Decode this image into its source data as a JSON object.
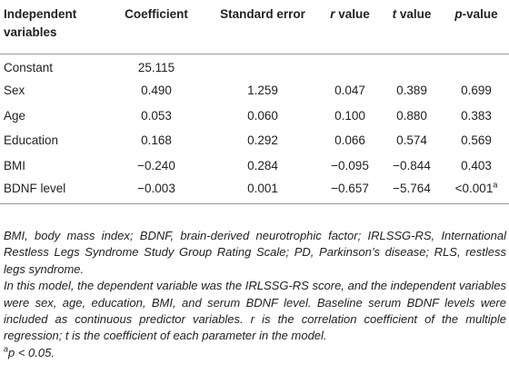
{
  "table": {
    "headers": {
      "variables": "Independent variables",
      "coefficient": "Coefficient",
      "std_error": "Standard error",
      "r_value_italic": "r",
      "r_value_rest": " value",
      "t_value_italic": "t",
      "t_value_rest": " value",
      "p_value_italic": "p",
      "p_value_rest": "-value"
    },
    "rows": [
      {
        "variable": "Constant",
        "coefficient": "25.115",
        "std_error": "",
        "r_value": "",
        "t_value": "",
        "p_value": "",
        "p_sup": ""
      },
      {
        "variable": "Sex",
        "coefficient": "0.490",
        "std_error": "1.259",
        "r_value": "0.047",
        "t_value": "0.389",
        "p_value": "0.699",
        "p_sup": ""
      },
      {
        "variable": "Age",
        "coefficient": "0.053",
        "std_error": "0.060",
        "r_value": "0.100",
        "t_value": "0.880",
        "p_value": "0.383",
        "p_sup": ""
      },
      {
        "variable": "Education",
        "coefficient": "0.168",
        "std_error": "0.292",
        "r_value": "0.066",
        "t_value": "0.574",
        "p_value": "0.569",
        "p_sup": ""
      },
      {
        "variable": "BMI",
        "coefficient": "−0.240",
        "std_error": "0.284",
        "r_value": "−0.095",
        "t_value": "−0.844",
        "p_value": "0.403",
        "p_sup": ""
      },
      {
        "variable": "BDNF level",
        "coefficient": "−0.003",
        "std_error": "0.001",
        "r_value": "−0.657",
        "t_value": "−5.764",
        "p_value": "<0.001",
        "p_sup": "a"
      }
    ]
  },
  "notes": {
    "abbreviations": "BMI, body mass index; BDNF, brain-derived neurotrophic factor; IRLSSG-RS, International Restless Legs Syndrome Study Group Rating Scale; PD, Parkinson’s disease; RLS, restless legs syndrome.",
    "model": {
      "part1": "In this model, the dependent variable was the IRLSSG-RS score, and the independent variables were sex, age, education, BMI, and serum BDNF level. Baseline serum BDNF levels were included as continuous predictor variables. ",
      "r_symbol": "r",
      "part2": " is the correlation coefficient of the multiple regression; ",
      "t_symbol": "t",
      "part3": " is the coefficient of each parameter in the model."
    },
    "footnote": {
      "marker": "a",
      "text": "p < 0.05."
    }
  }
}
